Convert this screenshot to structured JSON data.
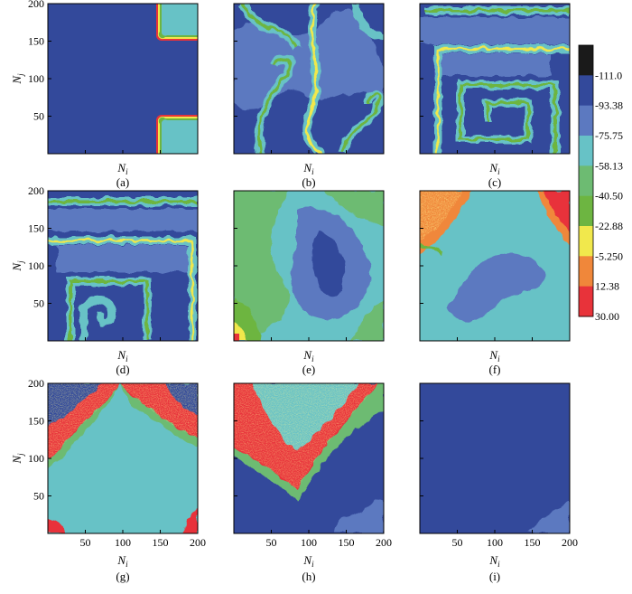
{
  "chart_data": {
    "type": "heatmap",
    "xlabel": "N",
    "xlabel_sub": "i",
    "ylabel": "N",
    "ylabel_sub": "j",
    "xlim": [
      0,
      200
    ],
    "ylim": [
      0,
      200
    ],
    "x_ticks": [
      "50",
      "100",
      "150",
      "200"
    ],
    "y_ticks": [
      "50",
      "100",
      "150",
      "200"
    ],
    "grid": false,
    "legend": "right",
    "colorbar": {
      "labels": [
        "-111.0",
        "-93.38",
        "-75.75",
        "-58.13",
        "-40.50",
        "-22.88",
        "-5.250",
        "12.38",
        "30.00"
      ],
      "colors": [
        "#1a1a1a",
        "#33499b",
        "#5c79c0",
        "#67c2c6",
        "#6dbb72",
        "#6db541",
        "#f1e84c",
        "#f0873a",
        "#e8333a"
      ]
    },
    "panels": [
      {
        "label": "(a)",
        "description": "uniform -111 background with excited wave patches at top-right and bottom-right corners"
      },
      {
        "label": "(b)",
        "description": "fragmented wave segments with curling ends"
      },
      {
        "label": "(c)",
        "description": "rotating spiral wave centered near (80,70)"
      },
      {
        "label": "(d)",
        "description": "spiral wave core shifted to lower-left, near (60,40)"
      },
      {
        "label": "(e)",
        "description": "diffuse state; -93 core in center, -58 and -40 bands to lower-left, small excited spot at origin"
      },
      {
        "label": "(f)",
        "description": "-75 field with excited corners at top-left and top-right and -93 patch in center"
      },
      {
        "label": "(g)",
        "description": "excited front forming an arch from top-left to top-right; -75 interior"
      },
      {
        "label": "(h)",
        "description": "V-shaped excited band from top-left down to (75,50) and up to top-right"
      },
      {
        "label": "(i)",
        "description": "nearly uniform -111 field, slight -93 at lower-right"
      }
    ]
  }
}
